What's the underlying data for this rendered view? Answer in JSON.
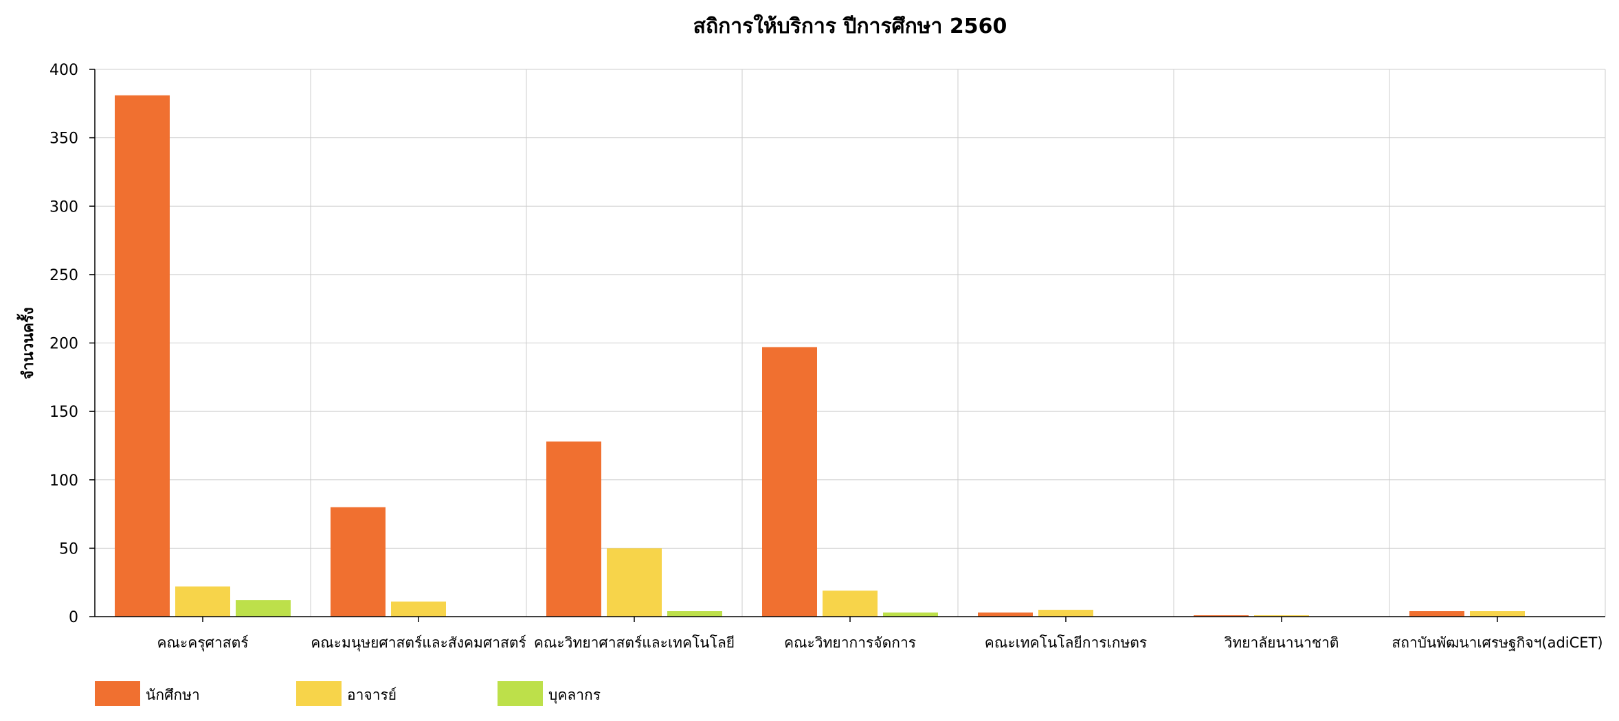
{
  "chart_data": {
    "type": "bar",
    "title": "สถิการให้บริการ ปีการศึกษา 2560",
    "xlabel": "",
    "ylabel": "จำนวนครั้ง",
    "ylim": [
      0,
      400
    ],
    "yticks": [
      0,
      50,
      100,
      150,
      200,
      250,
      300,
      350,
      400
    ],
    "grid": true,
    "legend_position": "bottom-left",
    "categories": [
      "คณะครุศาสตร์",
      "คณะมนุษยศาสตร์และสังคมศาสตร์",
      "คณะวิทยาศาสตร์และเทคโนโลยี",
      "คณะวิทยาการจัดการ",
      "คณะเทคโนโลยีการเกษตร",
      "วิทยาลัยนานาชาติ",
      "สถาบันพัฒนาเศรษฐกิจฯ(adiCET)"
    ],
    "series": [
      {
        "name": "นักศึกษา",
        "color": "#f07030",
        "values": [
          381,
          80,
          128,
          197,
          3,
          1,
          4
        ]
      },
      {
        "name": "อาจารย์",
        "color": "#f7d44a",
        "values": [
          22,
          11,
          50,
          19,
          5,
          1,
          4
        ]
      },
      {
        "name": "บุคลากร",
        "color": "#bde04a",
        "values": [
          12,
          0,
          4,
          3,
          0,
          0,
          0
        ]
      }
    ]
  }
}
